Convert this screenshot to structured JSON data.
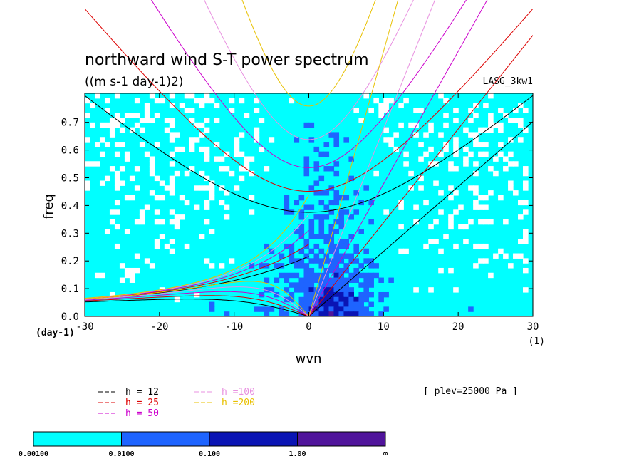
{
  "chart_data": {
    "type": "heatmap",
    "title": "northward wind S-T power spectrum",
    "subtitle": "((m s-1 day-1)2)",
    "model_label": "LASG_3kw1",
    "xlabel": "wvn",
    "ylabel": "freq",
    "xunit_label": "(1)",
    "yunit_label": "(day-1)",
    "xlim": [
      -30,
      30
    ],
    "ylim": [
      0,
      0.78
    ],
    "xticks": [
      "-30",
      "-20",
      "-10",
      "0",
      "10",
      "20",
      "30"
    ],
    "xtick_values": [
      -30,
      -20,
      -10,
      0,
      10,
      20,
      30
    ],
    "yticks": [
      "0.0",
      "0.1",
      "0.2",
      "0.3",
      "0.4",
      "0.5",
      "0.6",
      "0.7"
    ],
    "ytick_values": [
      0,
      0.1,
      0.2,
      0.3,
      0.4,
      0.5,
      0.6,
      0.7
    ],
    "plev_note": "[ plev=25000 Pa ]",
    "legend": [
      {
        "label": "h = 12",
        "h": 12,
        "color": "#000000"
      },
      {
        "label": "h = 25",
        "h": 25,
        "color": "#dd0000"
      },
      {
        "label": "h = 50",
        "h": 50,
        "color": "#cc00cc"
      },
      {
        "label": "h =100",
        "h": 100,
        "color": "#e890e0"
      },
      {
        "label": "h =200",
        "h": 200,
        "color": "#e8c000"
      }
    ],
    "colorbar": {
      "boundaries": [
        "0.00100",
        "0.0100",
        "0.100",
        "1.00",
        "∞"
      ],
      "colors": [
        "#00ffff",
        "#1e64ff",
        "#0a14b4",
        "#50149b"
      ]
    }
  }
}
